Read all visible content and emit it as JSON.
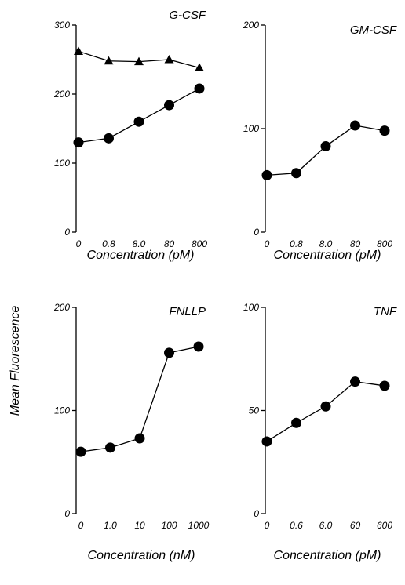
{
  "figure": {
    "shared_ylabel": "Mean Fluorescence"
  },
  "chart_data": [
    {
      "type": "line",
      "title": "G-CSF",
      "xlabel": "Concentration (pM)",
      "ylabel": "",
      "categories": [
        "0",
        "0.8",
        "8.0",
        "80",
        "800"
      ],
      "yticks": [
        "0",
        "100",
        "200",
        "300"
      ],
      "ylim": [
        0,
        300
      ],
      "grid": false,
      "series": [
        {
          "marker": "triangle",
          "values": [
            262,
            248,
            247,
            250,
            238
          ]
        },
        {
          "marker": "circle",
          "values": [
            130,
            136,
            160,
            184,
            208
          ]
        }
      ]
    },
    {
      "type": "line",
      "title": "GM-CSF",
      "xlabel": "Concentration (pM)",
      "ylabel": "",
      "categories": [
        "0",
        "0.8",
        "8.0",
        "80",
        "800"
      ],
      "yticks": [
        "0",
        "100",
        "200"
      ],
      "ylim": [
        0,
        200
      ],
      "grid": false,
      "series": [
        {
          "marker": "circle",
          "values": [
            55,
            57,
            83,
            103,
            98
          ]
        }
      ]
    },
    {
      "type": "line",
      "title": "FNLLP",
      "xlabel": "Concentration (nM)",
      "ylabel": "",
      "categories": [
        "0",
        "1.0",
        "10",
        "100",
        "1000"
      ],
      "yticks": [
        "0",
        "100",
        "200"
      ],
      "ylim": [
        0,
        200
      ],
      "grid": false,
      "series": [
        {
          "marker": "circle",
          "values": [
            60,
            64,
            73,
            156,
            162
          ]
        }
      ]
    },
    {
      "type": "line",
      "title": "TNF",
      "xlabel": "Concentration (pM)",
      "ylabel": "",
      "categories": [
        "0",
        "0.6",
        "6.0",
        "60",
        "600"
      ],
      "yticks": [
        "0",
        "50",
        "100"
      ],
      "ylim": [
        0,
        100
      ],
      "grid": false,
      "series": [
        {
          "marker": "circle",
          "values": [
            35,
            44,
            52,
            64,
            62
          ]
        }
      ]
    }
  ]
}
